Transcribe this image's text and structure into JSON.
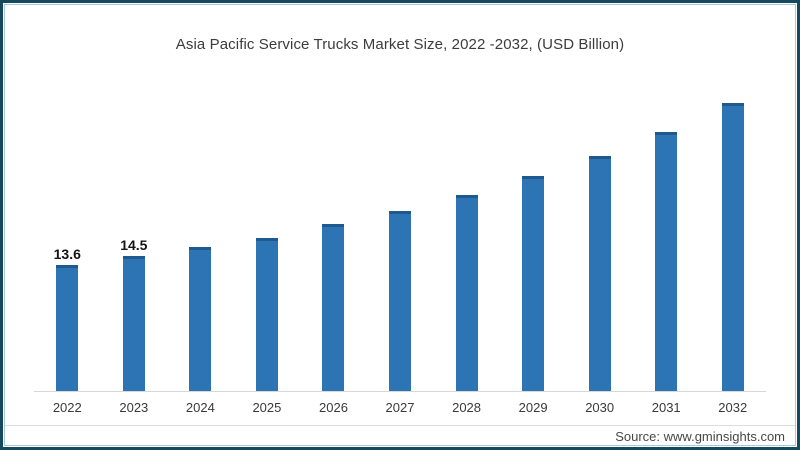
{
  "chart_data": {
    "type": "bar",
    "title": "Asia Pacific Service Trucks Market Size, 2022 -2032, (USD Billion)",
    "categories": [
      "2022",
      "2023",
      "2024",
      "2025",
      "2026",
      "2027",
      "2028",
      "2029",
      "2030",
      "2031",
      "2032"
    ],
    "values": [
      13.6,
      14.5,
      15.5,
      16.5,
      18.0,
      19.4,
      21.1,
      23.2,
      25.3,
      27.9,
      31.0
    ],
    "bar_labels": [
      "13.6",
      "14.5",
      "",
      "",
      "",
      "",
      "",
      "",
      "",
      "",
      ""
    ],
    "xlabel": "",
    "ylabel": "",
    "ylim": [
      0,
      32
    ],
    "grid": false,
    "legend": "none",
    "bar_color": "#2d74b5",
    "bar_cap_color": "#1f5a8e",
    "axis_line_color": "#d8d8d8"
  },
  "frame": {
    "outer_border_color": "#16485e",
    "inner_border_color": "#a9c9dc"
  },
  "footer": {
    "source": "Source: www.gminsights.com"
  }
}
